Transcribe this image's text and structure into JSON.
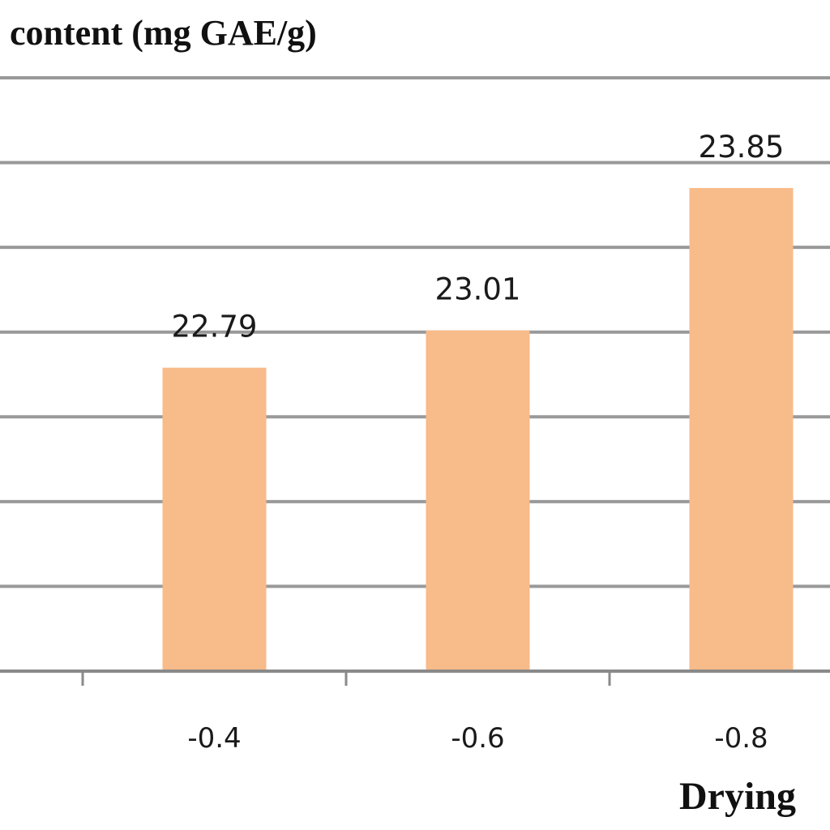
{
  "chart_data": {
    "type": "bar",
    "title": "content (mg GAE/g)",
    "xlabel": "Drying",
    "ylabel": "",
    "categories": [
      "-0.4",
      "-0.6",
      "-0.8"
    ],
    "values": [
      22.79,
      23.01,
      23.85
    ],
    "data_labels": [
      "22.79",
      "23.01",
      "23.85"
    ],
    "ylim": [
      21.0,
      24.5
    ],
    "y_grid_step": 0.5,
    "grid": true,
    "legend": "none",
    "bar_color": "#f8bb8a",
    "grid_color": "#999999"
  }
}
